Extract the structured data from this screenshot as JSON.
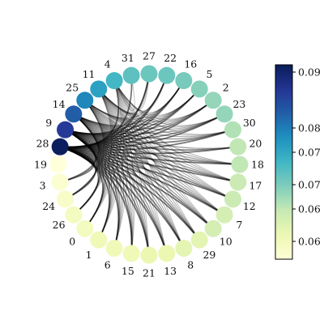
{
  "chart_data": {
    "type": "chord-graph",
    "title": "",
    "node_order_clockwise_from_left": [
      "19",
      "28",
      "9",
      "14",
      "25",
      "11",
      "4",
      "31",
      "27",
      "22",
      "16",
      "5",
      "2",
      "23",
      "30",
      "20",
      "18",
      "17",
      "12",
      "7",
      "10",
      "29",
      "8",
      "13",
      "21",
      "15",
      "6",
      "1",
      "0",
      "26",
      "24",
      "3"
    ],
    "node_values": {
      "28": 0.092,
      "9": 0.087,
      "14": 0.083,
      "25": 0.079,
      "11": 0.076,
      "4": 0.073,
      "31": 0.071,
      "27": 0.07,
      "22": 0.07,
      "16": 0.069,
      "5": 0.068,
      "2": 0.067,
      "23": 0.067,
      "30": 0.065,
      "20": 0.064,
      "18": 0.064,
      "17": 0.063,
      "12": 0.063,
      "7": 0.062,
      "10": 0.062,
      "29": 0.06,
      "8": 0.06,
      "13": 0.059,
      "21": 0.059,
      "15": 0.058,
      "6": 0.058,
      "1": 0.058,
      "0": 0.057,
      "26": 0.057,
      "24": 0.056,
      "3": 0.055,
      "19": 0.054
    },
    "edges": [
      {
        "source": "28",
        "targets": [
          "20",
          "18",
          "17",
          "12",
          "7",
          "10",
          "29",
          "8",
          "13",
          "21",
          "15",
          "6",
          "1",
          "0",
          "26",
          "24",
          "3",
          "30",
          "23",
          "2",
          "5",
          "16",
          "22",
          "27",
          "31",
          "4"
        ],
        "weight": 0.95
      },
      {
        "source": "9",
        "targets": [
          "20",
          "18",
          "17",
          "12",
          "7",
          "10",
          "29",
          "8",
          "13",
          "21",
          "15",
          "6",
          "1",
          "0",
          "26",
          "24",
          "3",
          "30",
          "23",
          "2",
          "5",
          "16",
          "22",
          "27"
        ],
        "weight": 0.85
      },
      {
        "source": "14",
        "targets": [
          "20",
          "18",
          "17",
          "12",
          "7",
          "10",
          "29",
          "8",
          "13",
          "21",
          "15",
          "6",
          "1",
          "0",
          "26",
          "24",
          "3",
          "30",
          "23",
          "2",
          "5",
          "16"
        ],
        "weight": 0.6
      },
      {
        "source": "25",
        "targets": [
          "18",
          "17",
          "12",
          "7",
          "10",
          "29",
          "8",
          "13",
          "21",
          "15",
          "6",
          "1",
          "0",
          "26",
          "24",
          "30",
          "23",
          "2",
          "5",
          "16",
          "22"
        ],
        "weight": 0.45
      },
      {
        "source": "11",
        "targets": [
          "18",
          "17",
          "12",
          "7",
          "10",
          "29",
          "8",
          "13",
          "21",
          "15",
          "6",
          "1",
          "0",
          "26",
          "30",
          "23",
          "2",
          "5",
          "16",
          "22",
          "27"
        ],
        "weight": 0.4
      },
      {
        "source": "4",
        "targets": [
          "17",
          "12",
          "7",
          "10",
          "29",
          "8",
          "13",
          "21",
          "15",
          "6",
          "1",
          "0",
          "30",
          "23",
          "2",
          "5",
          "16",
          "22",
          "27",
          "31"
        ],
        "weight": 0.3
      }
    ],
    "colorbar": {
      "colormap": "YlGnBu",
      "ticks": [
        "0.06",
        "0.06",
        "0.07",
        "0.07",
        "0.08",
        "0.09"
      ],
      "range": [
        0.054,
        0.0925
      ]
    },
    "colors": {
      "low": "#ffffd9",
      "high": "#172b70",
      "edge": "#000000"
    }
  }
}
